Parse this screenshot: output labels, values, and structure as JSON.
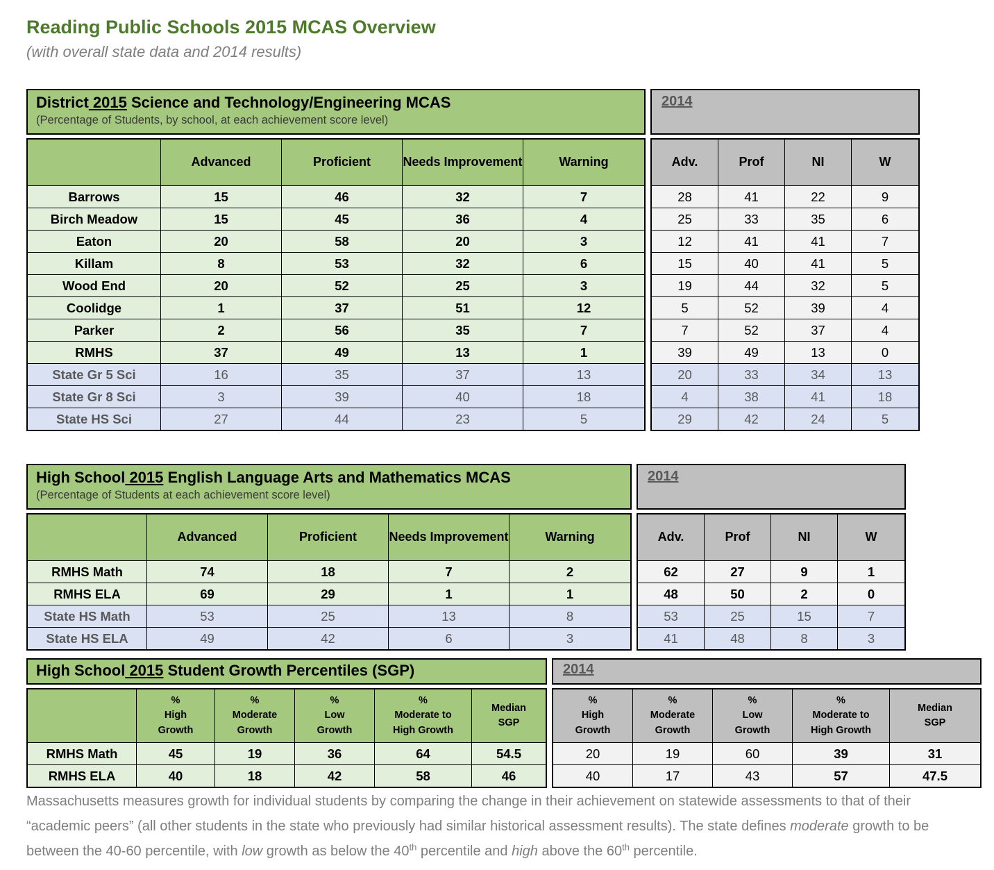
{
  "header": {
    "title": "Reading Public Schools 2015 MCAS Overview",
    "subtitle": "(with overall state data and 2014 results)"
  },
  "colors": {
    "title_green": "#4E7B2B",
    "green": "#A5C87F",
    "light_green": "#E2EFDA",
    "state_blue": "#D9E1F2",
    "gray": "#BFBFBF",
    "light_gray": "#F2F2F2",
    "gray_text": "#595959",
    "muted_text": "#7F7F7F"
  },
  "tables": [
    {
      "name": "district-science-mcas-table",
      "title": {
        "prefix": "District",
        "year": " 2015",
        "suffix": " Science and Technology/Engineering MCAS"
      },
      "subtitle": "(Percentage of Students, by school, at each achievement score level)",
      "right_year": "2014",
      "left_headers": [
        "",
        "Advanced",
        "Proficient",
        "Needs Improvement",
        "Warning"
      ],
      "right_headers": [
        "Adv.",
        "Prof",
        "NI",
        "W"
      ],
      "rows": [
        {
          "label": "Barrows",
          "state": false,
          "left": [
            "15",
            "46",
            "32",
            "7"
          ],
          "right": [
            "28",
            "41",
            "22",
            "9"
          ]
        },
        {
          "label": "Birch Meadow",
          "state": false,
          "left": [
            "15",
            "45",
            "36",
            "4"
          ],
          "right": [
            "25",
            "33",
            "35",
            "6"
          ]
        },
        {
          "label": "Eaton",
          "state": false,
          "left": [
            "20",
            "58",
            "20",
            "3"
          ],
          "right": [
            "12",
            "41",
            "41",
            "7"
          ]
        },
        {
          "label": "Killam",
          "state": false,
          "left": [
            "8",
            "53",
            "32",
            "6"
          ],
          "right": [
            "15",
            "40",
            "41",
            "5"
          ]
        },
        {
          "label": "Wood End",
          "state": false,
          "left": [
            "20",
            "52",
            "25",
            "3"
          ],
          "right": [
            "19",
            "44",
            "32",
            "5"
          ]
        },
        {
          "label": "Coolidge",
          "state": false,
          "left": [
            "1",
            "37",
            "51",
            "12"
          ],
          "right": [
            "5",
            "52",
            "39",
            "4"
          ]
        },
        {
          "label": "Parker",
          "state": false,
          "left": [
            "2",
            "56",
            "35",
            "7"
          ],
          "right": [
            "7",
            "52",
            "37",
            "4"
          ]
        },
        {
          "label": "RMHS",
          "state": false,
          "left": [
            "37",
            "49",
            "13",
            "1"
          ],
          "right": [
            "39",
            "49",
            "13",
            "0"
          ]
        },
        {
          "label": "State Gr 5 Sci",
          "state": true,
          "left": [
            "16",
            "35",
            "37",
            "13"
          ],
          "right": [
            "20",
            "33",
            "34",
            "13"
          ]
        },
        {
          "label": "State Gr 8 Sci",
          "state": true,
          "left": [
            "3",
            "39",
            "40",
            "18"
          ],
          "right": [
            "4",
            "38",
            "41",
            "18"
          ]
        },
        {
          "label": "State HS Sci",
          "state": true,
          "left": [
            "27",
            "44",
            "23",
            "5"
          ],
          "right": [
            "29",
            "42",
            "24",
            "5"
          ]
        }
      ]
    },
    {
      "name": "high-school-ela-math-mcas-table",
      "title": {
        "prefix": "High School",
        "year": " 2015",
        "suffix": " English Language Arts and Mathematics MCAS"
      },
      "subtitle": "(Percentage of Students at each achievement score level)",
      "right_year": "2014",
      "left_headers": [
        "",
        "Advanced",
        "Proficient",
        "Needs Improvement",
        "Warning"
      ],
      "right_headers": [
        "Adv.",
        "Prof",
        "NI",
        "W"
      ],
      "rows": [
        {
          "label": "RMHS Math",
          "state": false,
          "left": [
            "74",
            "18",
            "7",
            "2"
          ],
          "right": [
            "62",
            "27",
            "9",
            "1"
          ]
        },
        {
          "label": "RMHS ELA",
          "state": false,
          "left": [
            "69",
            "29",
            "1",
            "1"
          ],
          "right": [
            "48",
            "50",
            "2",
            "0"
          ]
        },
        {
          "label": "State HS Math",
          "state": true,
          "left": [
            "53",
            "25",
            "13",
            "8"
          ],
          "right": [
            "53",
            "25",
            "15",
            "7"
          ]
        },
        {
          "label": "State HS ELA",
          "state": true,
          "left": [
            "49",
            "42",
            "6",
            "3"
          ],
          "right": [
            "41",
            "48",
            "8",
            "3"
          ]
        }
      ]
    },
    {
      "name": "high-school-sgp-table",
      "title": {
        "prefix": "High School",
        "year": " 2015",
        "suffix": " Student Growth Percentiles (SGP)"
      },
      "subtitle": null,
      "right_year": "2014",
      "left_headers": [
        "",
        "%\nHigh\nGrowth",
        "%\nModerate\nGrowth",
        "%\nLow\nGrowth",
        "%\nModerate to\nHigh Growth",
        "Median\nSGP"
      ],
      "right_headers": [
        "%\nHigh\nGrowth",
        "%\nModerate\nGrowth",
        "%\nLow\nGrowth",
        "%\nModerate to\nHigh Growth",
        "Median\nSGP"
      ],
      "rows": [
        {
          "label": "RMHS Math",
          "state": false,
          "left": [
            "45",
            "19",
            "36",
            "64",
            "54.5"
          ],
          "right": [
            "20",
            "19",
            "60",
            "39",
            "31"
          ]
        },
        {
          "label": "RMHS ELA",
          "state": false,
          "left": [
            "40",
            "18",
            "42",
            "58",
            "46"
          ],
          "right": [
            "40",
            "17",
            "43",
            "57",
            "47.5"
          ]
        }
      ]
    }
  ],
  "footnote": {
    "segments": [
      {
        "t": "Massachusetts measures growth for individual students by comparing the change in their achievement on statewide assessments to that of their “academic peers” (all other students in the state who previously had similar historical assessment results).  The state defines "
      },
      {
        "t": "moderate",
        "i": true
      },
      {
        "t": " growth to be between the 40-60 percentile, with "
      },
      {
        "t": "low",
        "i": true
      },
      {
        "t": " growth as below the 40"
      },
      {
        "t": "th",
        "sup": true
      },
      {
        "t": " percentile and "
      },
      {
        "t": "high",
        "i": true
      },
      {
        "t": " above the 60"
      },
      {
        "t": "th",
        "sup": true
      },
      {
        "t": " percentile."
      }
    ]
  }
}
